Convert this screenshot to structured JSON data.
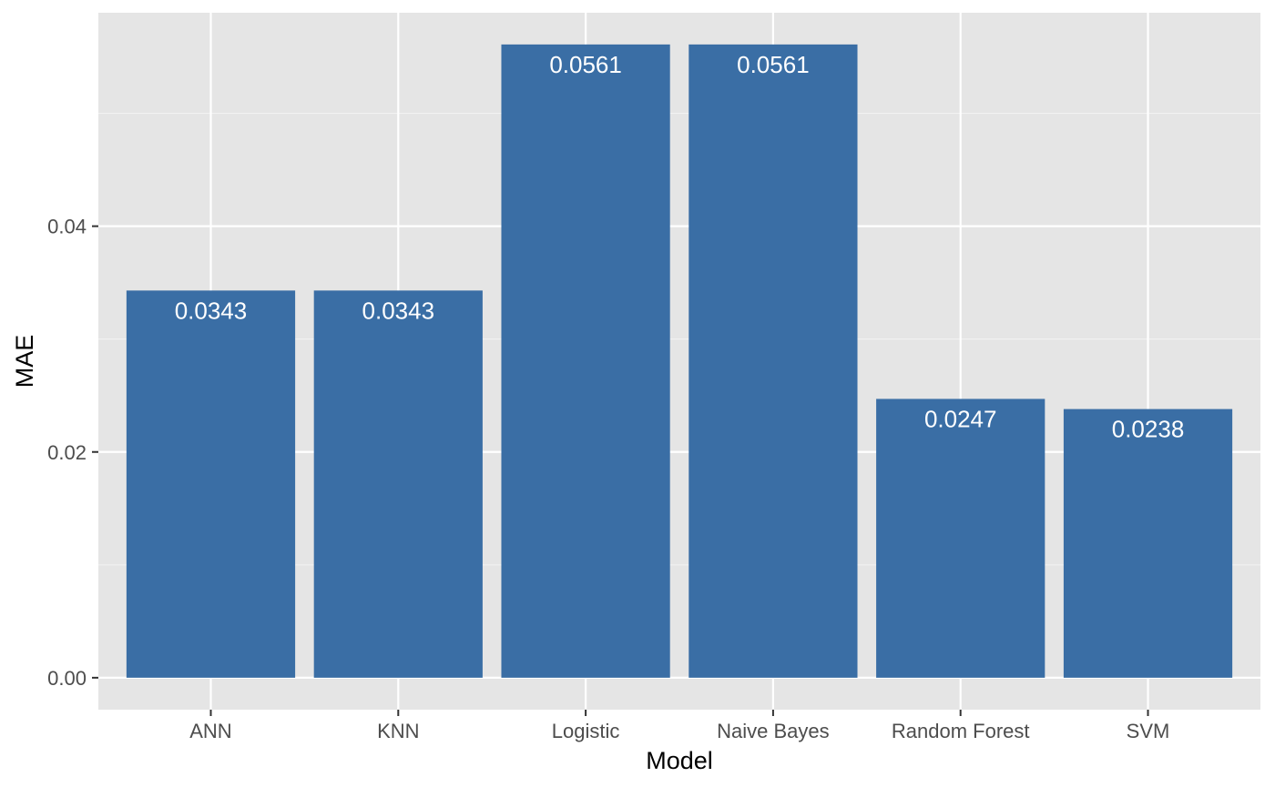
{
  "colors": {
    "panel_background": "#E5E5E5",
    "grid_major": "#FFFFFF",
    "grid_minor": "#F2F2F2",
    "bar_fill": "#3A6EA5",
    "data_label": "#FFFFFF",
    "axis_text": "#4D4D4D",
    "axis_title": "#000000",
    "tick_mark": "#333333"
  },
  "chart_data": {
    "type": "bar",
    "categories": [
      "ANN",
      "KNN",
      "Logistic",
      "Naive Bayes",
      "Random Forest",
      "SVM"
    ],
    "values": [
      0.0343,
      0.0343,
      0.0561,
      0.0561,
      0.0247,
      0.0238
    ],
    "value_labels": [
      "0.0343",
      "0.0343",
      "0.0561",
      "0.0561",
      "0.0247",
      "0.0238"
    ],
    "xlabel": "Model",
    "ylabel": "MAE",
    "ylim": [
      -0.00283,
      0.05891
    ],
    "y_ticks": [
      0.0,
      0.02,
      0.04
    ],
    "y_tick_labels": [
      "0.00",
      "0.02",
      "0.04"
    ],
    "y_minor_ticks": [
      0.01,
      0.03,
      0.05
    ],
    "grid": true,
    "legend": "none"
  }
}
